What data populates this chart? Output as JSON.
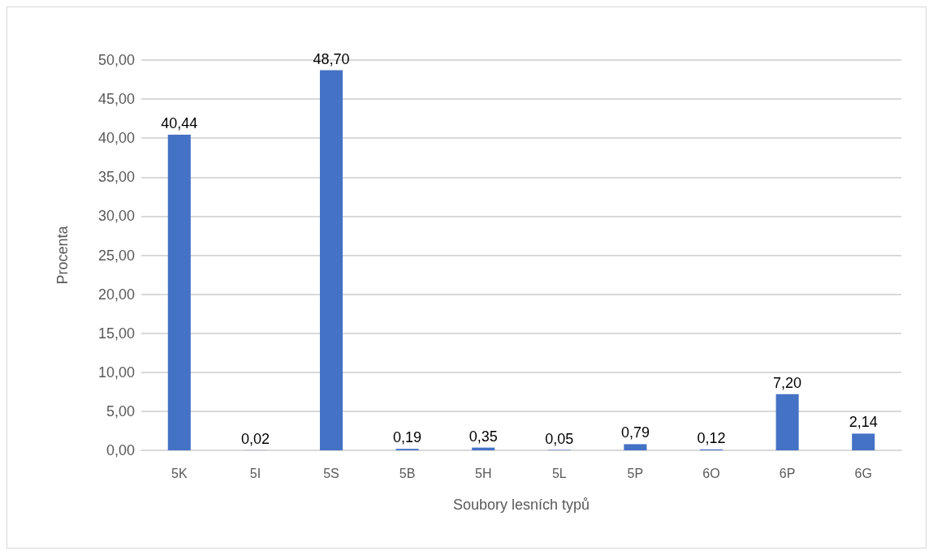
{
  "chart_data": {
    "type": "bar",
    "xlabel": "Soubory lesních typů",
    "ylabel": "Procenta",
    "categories": [
      "5K",
      "5I",
      "5S",
      "5B",
      "5H",
      "5L",
      "5P",
      "6O",
      "6P",
      "6G"
    ],
    "values": [
      40.44,
      0.02,
      48.7,
      0.19,
      0.35,
      0.05,
      0.79,
      0.12,
      7.2,
      2.14
    ],
    "value_labels": [
      "40,44",
      "0,02",
      "48,70",
      "0,19",
      "0,35",
      "0,05",
      "0,79",
      "0,12",
      "7,20",
      "2,14"
    ],
    "color": "#4472c4",
    "ylim": [
      0,
      50
    ],
    "yticks": [
      {
        "value": 0,
        "label": "0,00"
      },
      {
        "value": 5,
        "label": "5,00"
      },
      {
        "value": 10,
        "label": "10,00"
      },
      {
        "value": 15,
        "label": "15,00"
      },
      {
        "value": 20,
        "label": "20,00"
      },
      {
        "value": 25,
        "label": "25,00"
      },
      {
        "value": 30,
        "label": "30,00"
      },
      {
        "value": 35,
        "label": "35,00"
      },
      {
        "value": 40,
        "label": "40,00"
      },
      {
        "value": 45,
        "label": "45,00"
      },
      {
        "value": 50,
        "label": "50,00"
      }
    ],
    "grid": "y"
  }
}
